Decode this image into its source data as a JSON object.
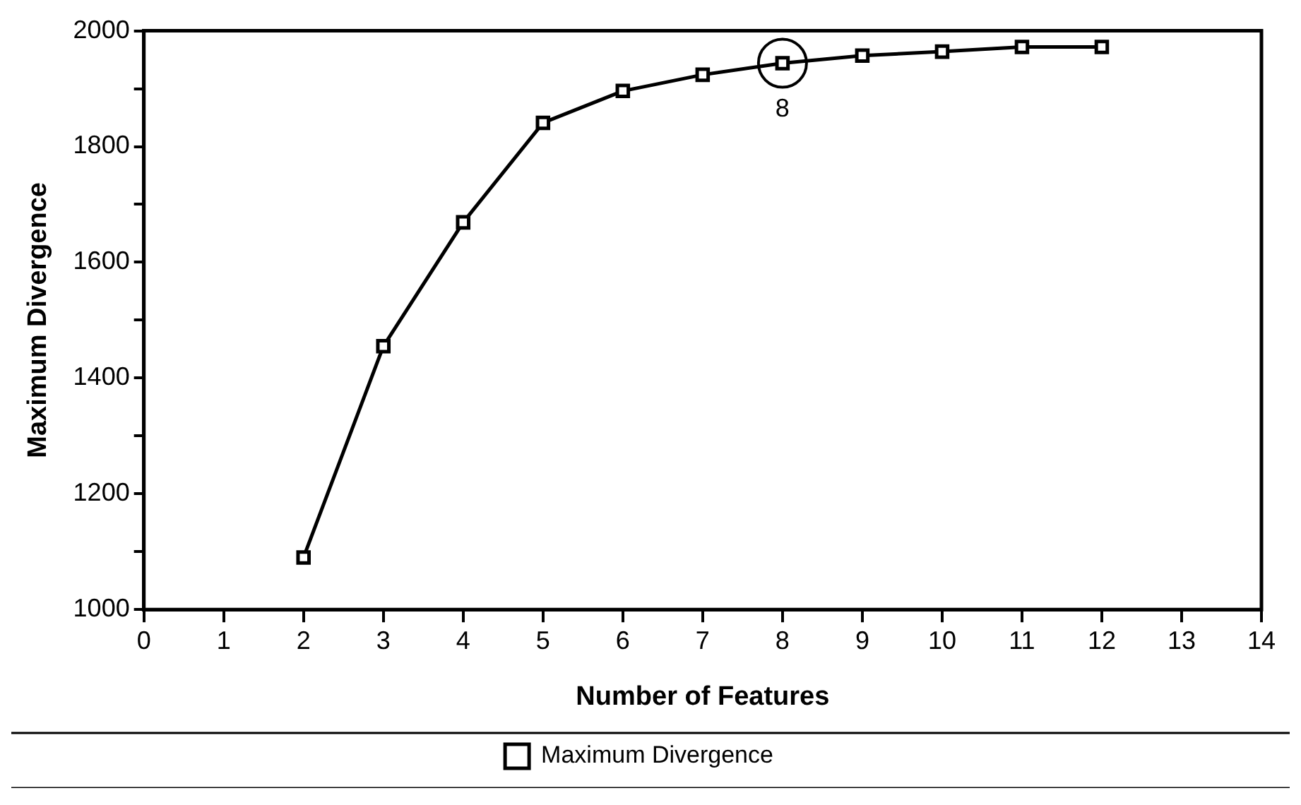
{
  "chart_data": {
    "type": "line",
    "xlabel": "Number of Features",
    "ylabel": "Maximum Divergence",
    "x": [
      2,
      3,
      4,
      5,
      6,
      7,
      8,
      9,
      10,
      11,
      12
    ],
    "series": [
      {
        "name": "Maximum Divergence",
        "color": "#000000",
        "values": [
          1090,
          1455,
          1669,
          1841,
          1896,
          1924,
          1944,
          1957,
          1964,
          1972,
          1972
        ]
      }
    ],
    "xlim": [
      0,
      14
    ],
    "xticks": [
      0,
      1,
      2,
      3,
      4,
      5,
      6,
      7,
      8,
      9,
      10,
      11,
      12,
      13,
      14
    ],
    "ylim": [
      1000,
      2000
    ],
    "yticks": [
      1000,
      {
        "value": 1100,
        "label": null
      },
      1200,
      {
        "value": 1300,
        "label": null
      },
      1400,
      {
        "value": 1500,
        "label": null
      },
      1600,
      {
        "value": 1700,
        "label": null
      },
      1800,
      {
        "value": 1900,
        "label": null
      },
      2000
    ],
    "annotations": [
      {
        "text": "8",
        "x": 8,
        "y": 1944
      }
    ],
    "grid": false,
    "legend": "bottom",
    "marker": "square",
    "line_style": "solid"
  }
}
